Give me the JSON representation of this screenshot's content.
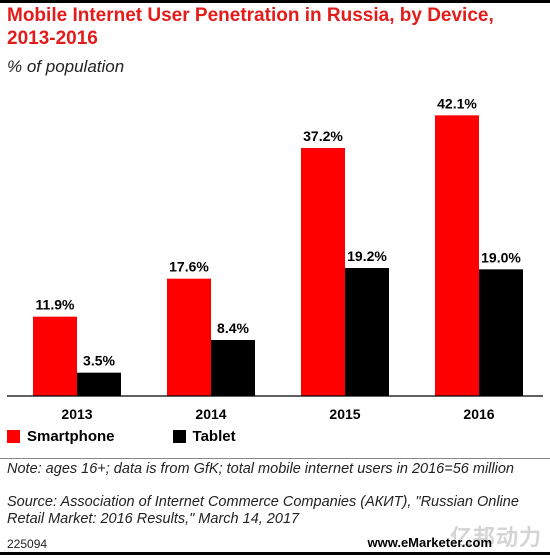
{
  "header": {
    "title": "Mobile Internet User Penetration in Russia, by Device, 2013-2016",
    "subtitle": "% of population"
  },
  "chart_data": {
    "type": "bar",
    "categories": [
      "2013",
      "2014",
      "2015",
      "2016"
    ],
    "series": [
      {
        "name": "Smartphone",
        "values": [
          11.9,
          17.6,
          37.2,
          42.1
        ],
        "labels": [
          "11.9%",
          "17.6%",
          "37.2%",
          "42.1%"
        ],
        "color": "#ff0000"
      },
      {
        "name": "Tablet",
        "values": [
          3.5,
          8.4,
          19.2,
          19.0
        ],
        "labels": [
          "3.5%",
          "8.4%",
          "19.2%",
          "19.0%"
        ],
        "color": "#000000"
      }
    ],
    "ylim": [
      0,
      45
    ],
    "grid": false,
    "legend_position": "bottom-left"
  },
  "colors": {
    "title": "#e31b1b",
    "smartphone": "#ff0000",
    "tablet": "#000000"
  },
  "footer": {
    "note": "Note: ages 16+; data is from GfK; total mobile internet users in 2016=56 million",
    "source": "Source: Association of Internet Commerce Companies (АКИТ), \"Russian Online Retail Market: 2016 Results,\" March 14, 2017",
    "chart_id": "225094",
    "brand": "www.eMarketer.com",
    "watermark": "亿邦动力"
  }
}
